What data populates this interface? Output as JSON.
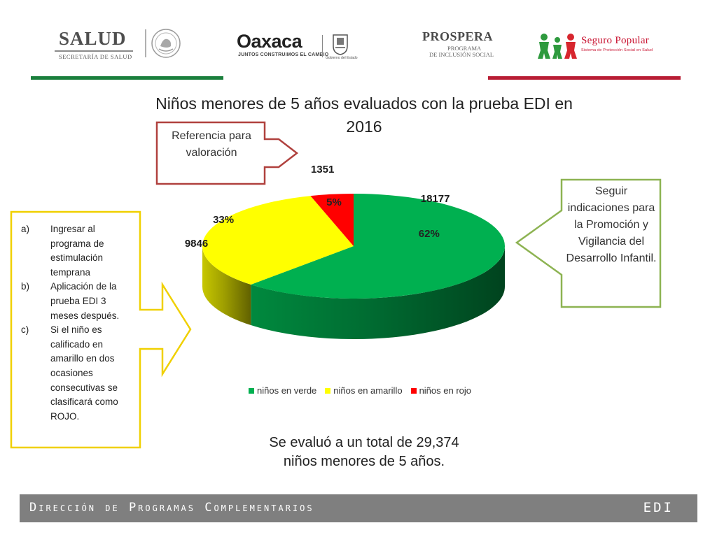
{
  "header": {
    "salud": {
      "name": "SALUD",
      "subtitle": "SECRETARÍA DE SALUD"
    },
    "oaxaca": {
      "name": "Oaxaca",
      "slogan": "JUNTOS CONSTRUIMOS EL CAMBIO",
      "seal_caption": "Gobierno del Estado"
    },
    "prospera": {
      "name": "PROSPERA",
      "line1": "PROGRAMA",
      "line2": "DE INCLUSIÓN SOCIAL"
    },
    "seguro_popular": {
      "name": "Seguro Popular",
      "subtitle": "Sistema de Protección Social en Salud"
    },
    "colors": {
      "green_rule": "#1a7f3c",
      "red_rule": "#b81d34"
    }
  },
  "title": "Niños menores de 5 años evaluados con la prueba EDI  en 2016",
  "callouts": {
    "reference": "Referencia para valoración",
    "right": "Seguir indicaciones para la Promoción y Vigilancia del Desarrollo Infantil.",
    "left_items": [
      {
        "marker": "a)",
        "text": "Ingresar al programa de estimulación temprana"
      },
      {
        "marker": "b)",
        "text": "Aplicación de la prueba EDI 3 meses después."
      },
      {
        "marker": "c)",
        "text": "Si el niño es calificado en amarillo en dos ocasiones consecutivas se clasificará como ROJO."
      }
    ],
    "colors": {
      "reference_border": "#b0413e",
      "right_border": "#8db352",
      "left_border": "#f0d000"
    }
  },
  "chart_data": {
    "type": "pie",
    "style": "3d",
    "categories": [
      "niños en verde",
      "niños en amarillo",
      "niños en rojo"
    ],
    "values": [
      18177,
      9846,
      1351
    ],
    "percent_labels": [
      "62%",
      "33%",
      "5%"
    ],
    "count_labels": [
      "18177",
      "9846",
      "1351"
    ],
    "colors": [
      "#00b050",
      "#ffff00",
      "#ff0000"
    ],
    "legend_position": "bottom"
  },
  "summary": "Se evaluó a un total de 29,374 niños menores de 5 años.",
  "footer": {
    "left": "Dirección de Programas Complementarios",
    "right": "EDI",
    "background": "#7f7f7f"
  }
}
